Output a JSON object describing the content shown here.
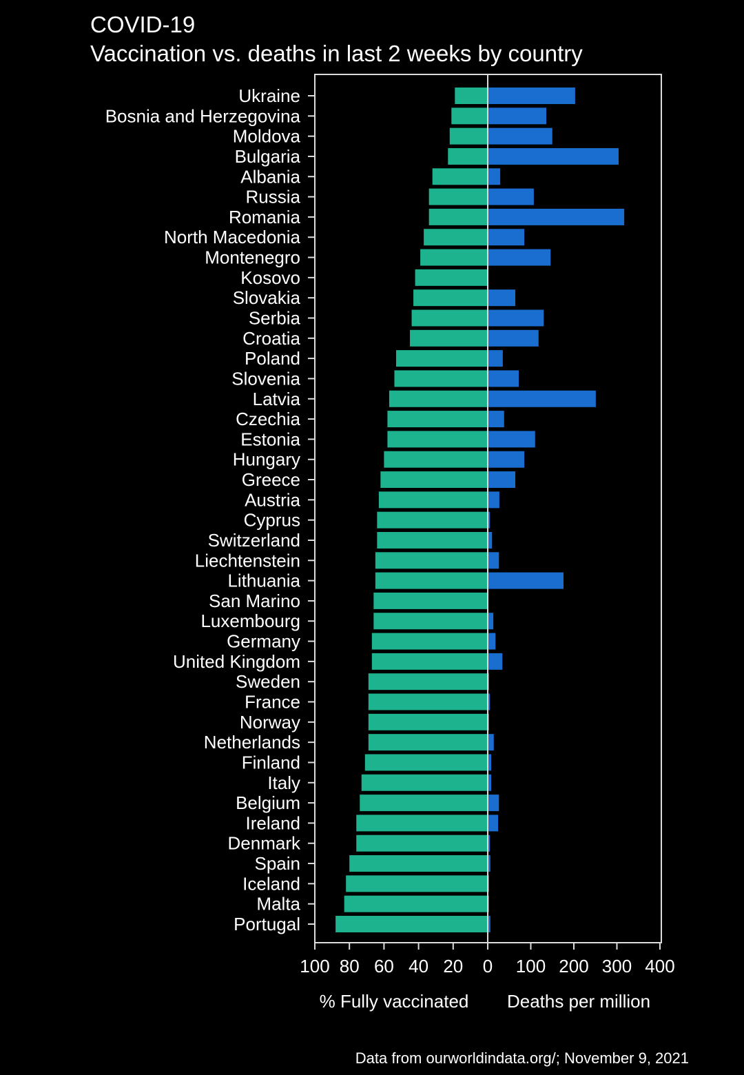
{
  "chart_data": {
    "type": "bar",
    "orientation": "horizontal-diverging",
    "title": "COVID-19",
    "subtitle": "Vaccination vs. deaths in last 2 weeks by country",
    "categories": [
      "Ukraine",
      "Bosnia and Herzegovina",
      "Moldova",
      "Bulgaria",
      "Albania",
      "Russia",
      "Romania",
      "North Macedonia",
      "Montenegro",
      "Kosovo",
      "Slovakia",
      "Serbia",
      "Croatia",
      "Poland",
      "Slovenia",
      "Latvia",
      "Czechia",
      "Estonia",
      "Hungary",
      "Greece",
      "Austria",
      "Cyprus",
      "Switzerland",
      "Liechtenstein",
      "Lithuania",
      "San Marino",
      "Luxembourg",
      "Germany",
      "United Kingdom",
      "Sweden",
      "France",
      "Norway",
      "Netherlands",
      "Finland",
      "Italy",
      "Belgium",
      "Ireland",
      "Denmark",
      "Spain",
      "Iceland",
      "Malta",
      "Portugal"
    ],
    "series": [
      {
        "name": "% Fully vaccinated",
        "color": "#1db38e",
        "xlim": [
          100,
          0
        ],
        "values": [
          19,
          21,
          22,
          23,
          32,
          34,
          34,
          37,
          39,
          42,
          43,
          44,
          45,
          53,
          54,
          57,
          58,
          58,
          60,
          62,
          63,
          64,
          64,
          65,
          65,
          66,
          66,
          67,
          67,
          69,
          69,
          69,
          69,
          71,
          73,
          74,
          76,
          76,
          80,
          82,
          83,
          88
        ]
      },
      {
        "name": "Deaths per million",
        "color": "#1a6ecf",
        "xlim": [
          0,
          400
        ],
        "values": [
          203,
          136,
          150,
          304,
          29,
          107,
          317,
          85,
          146,
          0,
          64,
          130,
          118,
          35,
          72,
          251,
          38,
          110,
          85,
          64,
          27,
          5,
          10,
          26,
          176,
          0,
          13,
          18,
          34,
          3,
          5,
          3,
          14,
          8,
          8,
          26,
          24,
          5,
          6,
          3,
          3,
          6
        ]
      }
    ],
    "left_ticks": [
      "100",
      "80",
      "60",
      "40",
      "20",
      "0"
    ],
    "right_ticks": [
      "100",
      "200",
      "300",
      "400"
    ],
    "xlabel_left": "% Fully vaccinated",
    "xlabel_right": "Deaths per million",
    "grid": false,
    "legend": "none"
  },
  "source_note": "Data from ourworldindata.org/;  November 9, 2021"
}
